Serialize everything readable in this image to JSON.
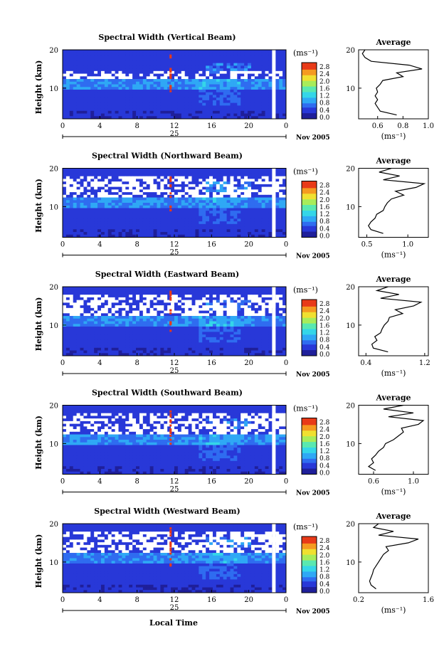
{
  "figure": {
    "xlabel": "Local Time",
    "panel_ylabel": "Height (km)",
    "date_label": "Nov 2005",
    "colorbar_unit": "(ms⁻¹)",
    "profile_title": "Average",
    "profile_xlabel": "(ms⁻¹)",
    "colors": {
      "scale": [
        "#1f1f9a",
        "#2838d8",
        "#2f6cf0",
        "#2fa8f5",
        "#34d6e8",
        "#59e8b0",
        "#a8ec5a",
        "#f0e030",
        "#f59a20",
        "#e83a18"
      ],
      "background": "#ffffff"
    }
  },
  "chart_data": [
    {
      "type": "heatmap",
      "title": "Spectral Width (Vertical Beam)",
      "xlabel": "Local Time",
      "ylabel": "Height (km)",
      "xlim": [
        0,
        24
      ],
      "ylim": [
        2,
        20
      ],
      "xticks": [
        "0",
        "4",
        "8",
        "12",
        "16",
        "20",
        "0"
      ],
      "day_label": "25",
      "yticks": [
        "10",
        "20"
      ],
      "colorbar": {
        "unit": "(ms⁻¹)",
        "ticks": [
          "0.0",
          "0.4",
          "0.8",
          "1.2",
          "1.6",
          "2.0",
          "2.4",
          "2.8"
        ]
      },
      "profile": {
        "title": "Average",
        "xlabel": "(ms⁻¹)",
        "xlim": [
          0.45,
          1.0
        ],
        "xticks": [
          "0.6",
          "0.8",
          "1.0"
        ],
        "yticks": [
          "10",
          "20"
        ],
        "points": [
          [
            0.75,
            3
          ],
          [
            0.62,
            4
          ],
          [
            0.6,
            5
          ],
          [
            0.58,
            6
          ],
          [
            0.6,
            7
          ],
          [
            0.58,
            8
          ],
          [
            0.6,
            9
          ],
          [
            0.59,
            10
          ],
          [
            0.62,
            11
          ],
          [
            0.64,
            12
          ],
          [
            0.8,
            13
          ],
          [
            0.75,
            14
          ],
          [
            0.95,
            15
          ],
          [
            0.85,
            16
          ],
          [
            0.55,
            17
          ],
          [
            0.5,
            18
          ],
          [
            0.48,
            19
          ],
          [
            0.5,
            20
          ]
        ]
      }
    },
    {
      "type": "heatmap",
      "title": "Spectral Width (Northward Beam)",
      "xlabel": "Local Time",
      "ylabel": "Height (km)",
      "xlim": [
        0,
        24
      ],
      "ylim": [
        2,
        20
      ],
      "xticks": [
        "0",
        "4",
        "8",
        "12",
        "16",
        "20",
        "0"
      ],
      "day_label": "25",
      "yticks": [
        "10",
        "20"
      ],
      "colorbar": {
        "unit": "(ms⁻¹)",
        "ticks": [
          "0.0",
          "0.4",
          "0.8",
          "1.2",
          "1.6",
          "2.0",
          "2.4",
          "2.8"
        ]
      },
      "profile": {
        "title": "Average",
        "xlabel": "(ms⁻¹)",
        "xlim": [
          0.4,
          1.25
        ],
        "xticks": [
          "0.5",
          "1.0"
        ],
        "yticks": [
          "10",
          "20"
        ],
        "points": [
          [
            0.7,
            3
          ],
          [
            0.55,
            4
          ],
          [
            0.52,
            5
          ],
          [
            0.55,
            6
          ],
          [
            0.6,
            7
          ],
          [
            0.62,
            8
          ],
          [
            0.7,
            9
          ],
          [
            0.72,
            10
          ],
          [
            0.75,
            11
          ],
          [
            0.8,
            12
          ],
          [
            0.95,
            13
          ],
          [
            0.85,
            14
          ],
          [
            1.1,
            15
          ],
          [
            1.2,
            16
          ],
          [
            0.7,
            17
          ],
          [
            0.9,
            18
          ],
          [
            0.65,
            19
          ],
          [
            0.8,
            20
          ]
        ]
      }
    },
    {
      "type": "heatmap",
      "title": "Spectral Width (Eastward Beam)",
      "xlabel": "Local Time",
      "ylabel": "Height (km)",
      "xlim": [
        0,
        24
      ],
      "ylim": [
        2,
        20
      ],
      "xticks": [
        "0",
        "4",
        "8",
        "12",
        "16",
        "20",
        "0"
      ],
      "day_label": "25",
      "yticks": [
        "10",
        "20"
      ],
      "colorbar": {
        "unit": "(ms⁻¹)",
        "ticks": [
          "0.0",
          "0.4",
          "0.8",
          "1.2",
          "1.6",
          "2.0",
          "2.4",
          "2.8"
        ]
      },
      "profile": {
        "title": "Average",
        "xlabel": "(ms⁻¹)",
        "xlim": [
          0.3,
          1.25
        ],
        "xticks": [
          "0.4",
          "1.2"
        ],
        "yticks": [
          "10",
          "20"
        ],
        "points": [
          [
            0.7,
            3
          ],
          [
            0.5,
            4
          ],
          [
            0.48,
            5
          ],
          [
            0.55,
            6
          ],
          [
            0.52,
            7
          ],
          [
            0.6,
            8
          ],
          [
            0.62,
            9
          ],
          [
            0.65,
            10
          ],
          [
            0.7,
            11
          ],
          [
            0.72,
            12
          ],
          [
            0.9,
            13
          ],
          [
            0.8,
            14
          ],
          [
            1.05,
            15
          ],
          [
            1.15,
            16
          ],
          [
            0.6,
            17
          ],
          [
            0.85,
            18
          ],
          [
            0.55,
            19
          ],
          [
            0.7,
            20
          ]
        ]
      }
    },
    {
      "type": "heatmap",
      "title": "Spectral Width (Southward Beam)",
      "xlabel": "Local Time",
      "ylabel": "Height (km)",
      "xlim": [
        0,
        24
      ],
      "ylim": [
        2,
        20
      ],
      "xticks": [
        "0",
        "4",
        "8",
        "12",
        "16",
        "20",
        "0"
      ],
      "day_label": "25",
      "yticks": [
        "10",
        "20"
      ],
      "colorbar": {
        "unit": "(ms⁻¹)",
        "ticks": [
          "0.0",
          "0.4",
          "0.8",
          "1.2",
          "1.6",
          "2.0",
          "2.4",
          "2.8"
        ]
      },
      "profile": {
        "title": "Average",
        "xlabel": "(ms⁻¹)",
        "xlim": [
          0.45,
          1.15
        ],
        "xticks": [
          "0.6",
          "1.0"
        ],
        "yticks": [
          "10",
          "20"
        ],
        "points": [
          [
            0.62,
            3
          ],
          [
            0.55,
            4
          ],
          [
            0.6,
            5
          ],
          [
            0.58,
            6
          ],
          [
            0.62,
            7
          ],
          [
            0.65,
            8
          ],
          [
            0.7,
            9
          ],
          [
            0.72,
            10
          ],
          [
            0.8,
            11
          ],
          [
            0.85,
            12
          ],
          [
            0.9,
            13
          ],
          [
            0.88,
            14
          ],
          [
            1.05,
            15
          ],
          [
            1.1,
            16
          ],
          [
            0.75,
            17
          ],
          [
            1.0,
            18
          ],
          [
            0.7,
            19
          ],
          [
            0.9,
            20
          ]
        ]
      }
    },
    {
      "type": "heatmap",
      "title": "Spectral Width (Westward Beam)",
      "xlabel": "Local Time",
      "ylabel": "Height (km)",
      "xlim": [
        0,
        24
      ],
      "ylim": [
        2,
        20
      ],
      "xticks": [
        "0",
        "4",
        "8",
        "12",
        "16",
        "20",
        "0"
      ],
      "day_label": "25",
      "yticks": [
        "10",
        "20"
      ],
      "colorbar": {
        "unit": "(ms⁻¹)",
        "ticks": [
          "0.0",
          "0.4",
          "0.8",
          "1.2",
          "1.6",
          "2.0",
          "2.4",
          "2.8"
        ]
      },
      "profile": {
        "title": "Average",
        "xlabel": "(ms⁻¹)",
        "xlim": [
          0.2,
          1.6
        ],
        "xticks": [
          "0.2",
          "1.6"
        ],
        "yticks": [
          "10",
          "20"
        ],
        "points": [
          [
            0.55,
            3
          ],
          [
            0.45,
            4
          ],
          [
            0.42,
            5
          ],
          [
            0.45,
            6
          ],
          [
            0.48,
            7
          ],
          [
            0.5,
            8
          ],
          [
            0.55,
            9
          ],
          [
            0.6,
            10
          ],
          [
            0.65,
            11
          ],
          [
            0.7,
            12
          ],
          [
            0.8,
            13
          ],
          [
            0.75,
            14
          ],
          [
            1.2,
            15
          ],
          [
            1.4,
            16
          ],
          [
            0.6,
            17
          ],
          [
            0.9,
            18
          ],
          [
            0.5,
            19
          ],
          [
            0.6,
            20
          ]
        ]
      }
    }
  ]
}
